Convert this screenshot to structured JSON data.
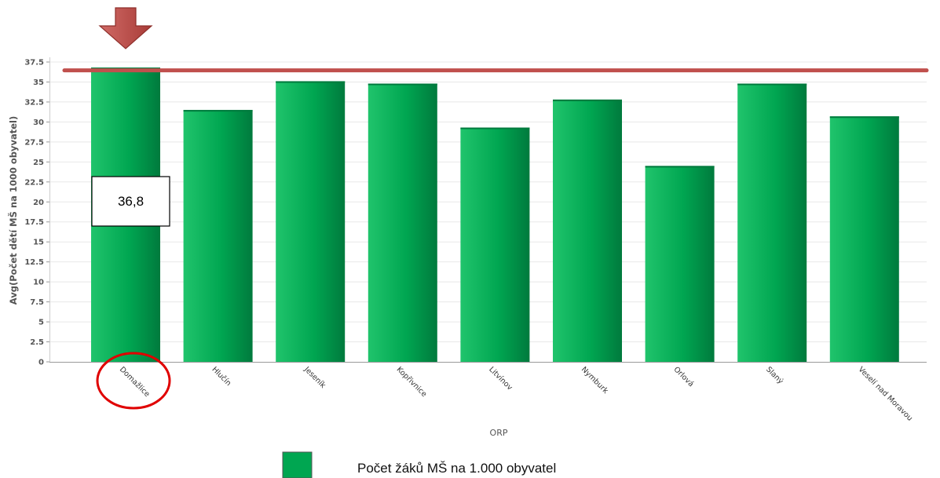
{
  "chart_data": {
    "type": "bar",
    "xlabel": "ORP",
    "ylabel": "Avg(Počet dětí MŠ na 1000 obyvatel)",
    "categories": [
      "Domažlice",
      "Hlučín",
      "Jeseník",
      "Kopřivnice",
      "Litvínov",
      "Nymburk",
      "Orlová",
      "Slaný",
      "Veselí nad Moravou"
    ],
    "series": [
      {
        "name": "Počet žáků MŠ na 1.000 obyvatel",
        "values": [
          36.8,
          31.5,
          35.1,
          34.8,
          29.3,
          32.8,
          24.5,
          34.8,
          30.7
        ]
      }
    ],
    "ylim": [
      0,
      37.5
    ],
    "yticks": [
      "0",
      "2.5",
      "5",
      "7.5",
      "10",
      "12.5",
      "15",
      "17.5",
      "20",
      "22.5",
      "25",
      "27.5",
      "30",
      "32.5",
      "35",
      "37.5"
    ],
    "grid": true,
    "legend_position": "bottom",
    "reference_line": 36.5,
    "highlight_index": 0,
    "callout_label": "36,8",
    "colors": {
      "bar": "#00a651",
      "bar_light": "#20c46c",
      "bar_dark": "#007a3d",
      "reference_line": "#c0504d",
      "arrow": "#c0504d",
      "circle": "#e00000",
      "grid": "#e8e8e8"
    }
  }
}
